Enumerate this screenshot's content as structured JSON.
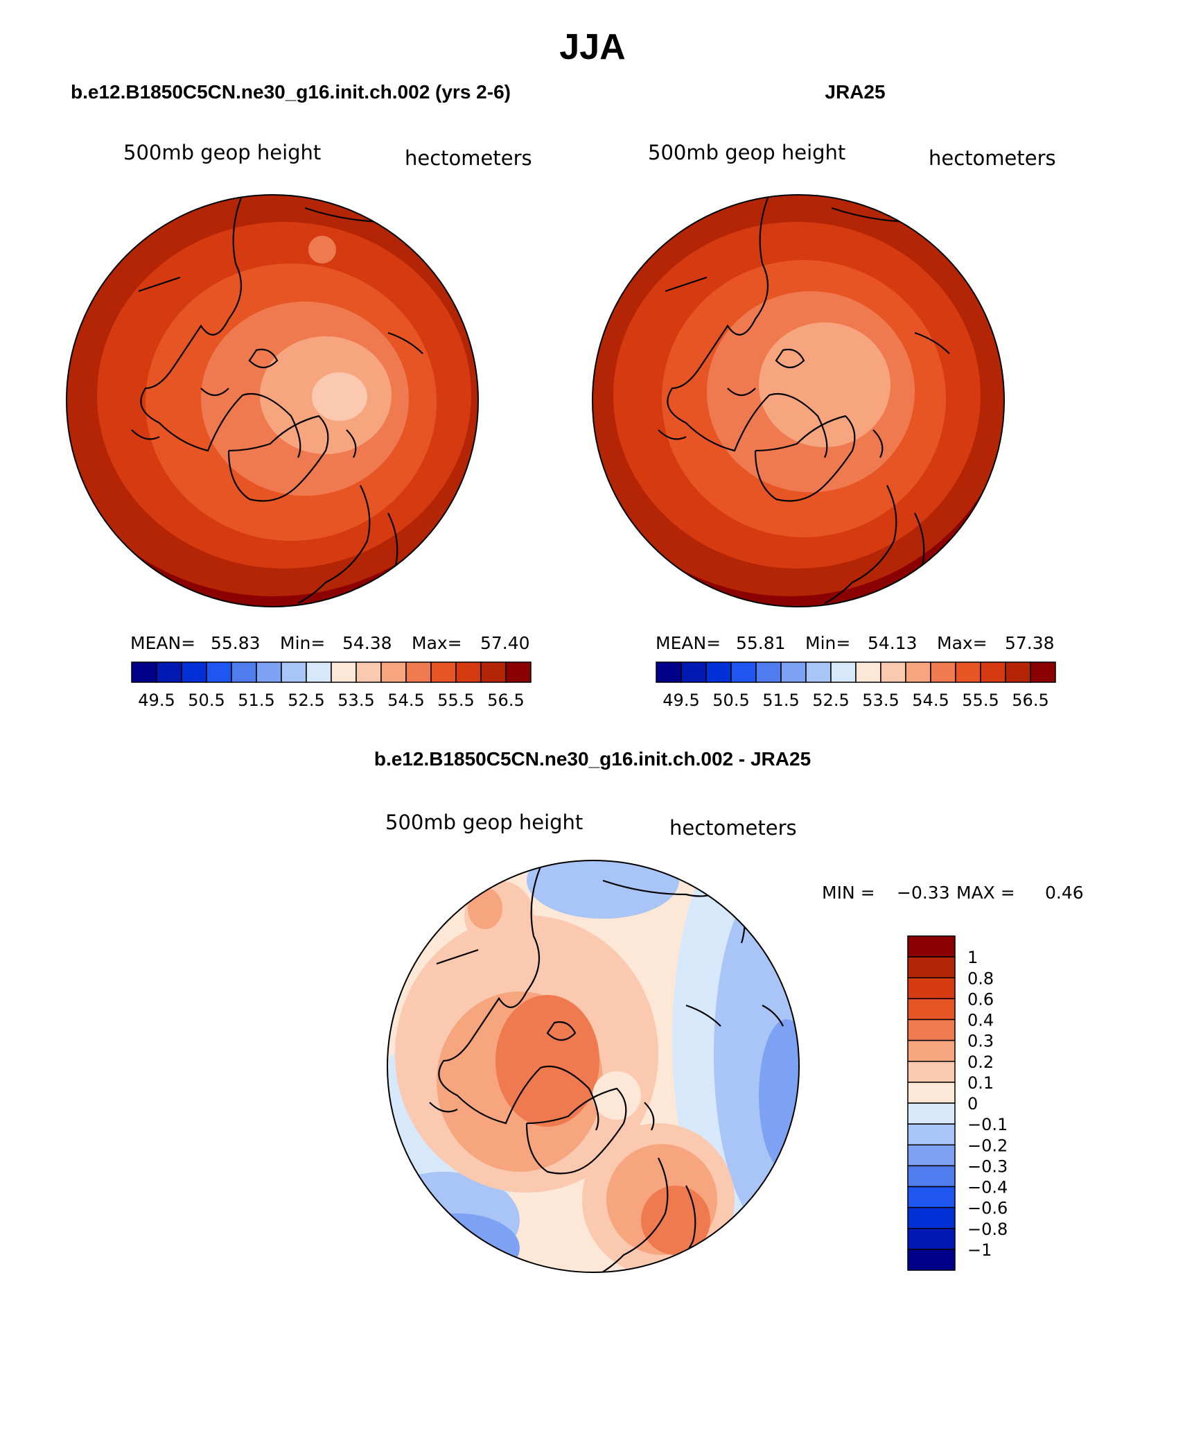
{
  "figure": {
    "title": "JJA",
    "panel_left": {
      "title": "b.e12.B1850C5CN.ne30_g16.init.ch.002 (yrs 2-6)",
      "variable": "500mb geop height",
      "units": "hectometers",
      "stats": {
        "mean_label": "MEAN=",
        "mean": "55.83",
        "min_label": "Min=",
        "min": "54.38",
        "max_label": "Max=",
        "max": "57.40"
      }
    },
    "panel_right": {
      "title": "JRA25",
      "variable": "500mb geop height",
      "units": "hectometers",
      "stats": {
        "mean_label": "MEAN=",
        "mean": "55.81",
        "min_label": "Min=",
        "min": "54.13",
        "max_label": "Max=",
        "max": "57.38"
      }
    },
    "panel_diff": {
      "title": "b.e12.B1850C5CN.ne30_g16.init.ch.002 - JRA25",
      "variable": "500mb geop height",
      "units": "hectometers",
      "stats": {
        "min_label": "MIN =",
        "min": "−0.33",
        "max_label": "MAX =",
        "max": "0.46"
      }
    }
  },
  "colorbar_main": {
    "colors": [
      "#00008b",
      "#0019b3",
      "#0030d6",
      "#1f55f0",
      "#4f7df0",
      "#7ea2f3",
      "#a9c4f6",
      "#d8e8fb",
      "#fde8d8",
      "#fac9b0",
      "#f7a57f",
      "#f07a4f",
      "#e85525",
      "#d63a10",
      "#b32505",
      "#8b0000"
    ],
    "tick_labels": [
      "49.5",
      "50.5",
      "51.5",
      "52.5",
      "53.5",
      "54.5",
      "55.5",
      "56.5"
    ]
  },
  "colorbar_diff": {
    "colors": [
      "#8b0000",
      "#b32505",
      "#d63a10",
      "#e85525",
      "#f07a4f",
      "#f7a57f",
      "#fac9b0",
      "#fde8d8",
      "#d8e8fb",
      "#a9c4f6",
      "#7ea2f3",
      "#4f7df0",
      "#1f55f0",
      "#0030d6",
      "#0019b3",
      "#00008b"
    ],
    "tick_labels": [
      "1",
      "0.8",
      "0.6",
      "0.4",
      "0.3",
      "0.2",
      "0.1",
      "0",
      "−0.1",
      "−0.2",
      "−0.3",
      "−0.4",
      "−0.6",
      "−0.8",
      "−1"
    ]
  }
}
